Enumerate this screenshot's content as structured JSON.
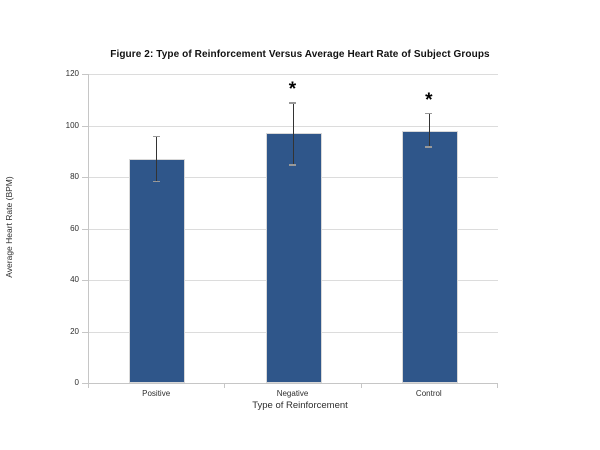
{
  "chart_data": {
    "type": "bar",
    "title": "Figure 2: Type of Reinforcement Versus Average Heart Rate of Subject Groups",
    "xlabel": "Type of Reinforcement",
    "ylabel": "Average Heart Rate (BPM)",
    "categories": [
      "Positive",
      "Negative",
      "Control"
    ],
    "values": [
      87,
      97,
      98
    ],
    "error_low": [
      78.5,
      85,
      92
    ],
    "error_high": [
      96,
      109,
      105
    ],
    "significant": [
      false,
      true,
      true
    ],
    "significance_marker": "*",
    "ylim": [
      0,
      120
    ],
    "ytick_step": 20,
    "grid": true,
    "legend": "none",
    "bar_color": "#2F568A",
    "bar_border_color": "#D8D8D8",
    "gridline_color": "#DCDCDC",
    "axis_color": "#C6C6C6",
    "error_line_color": "#333333",
    "error_cap_color": "#999999",
    "text_color": "#2E2E2E"
  }
}
